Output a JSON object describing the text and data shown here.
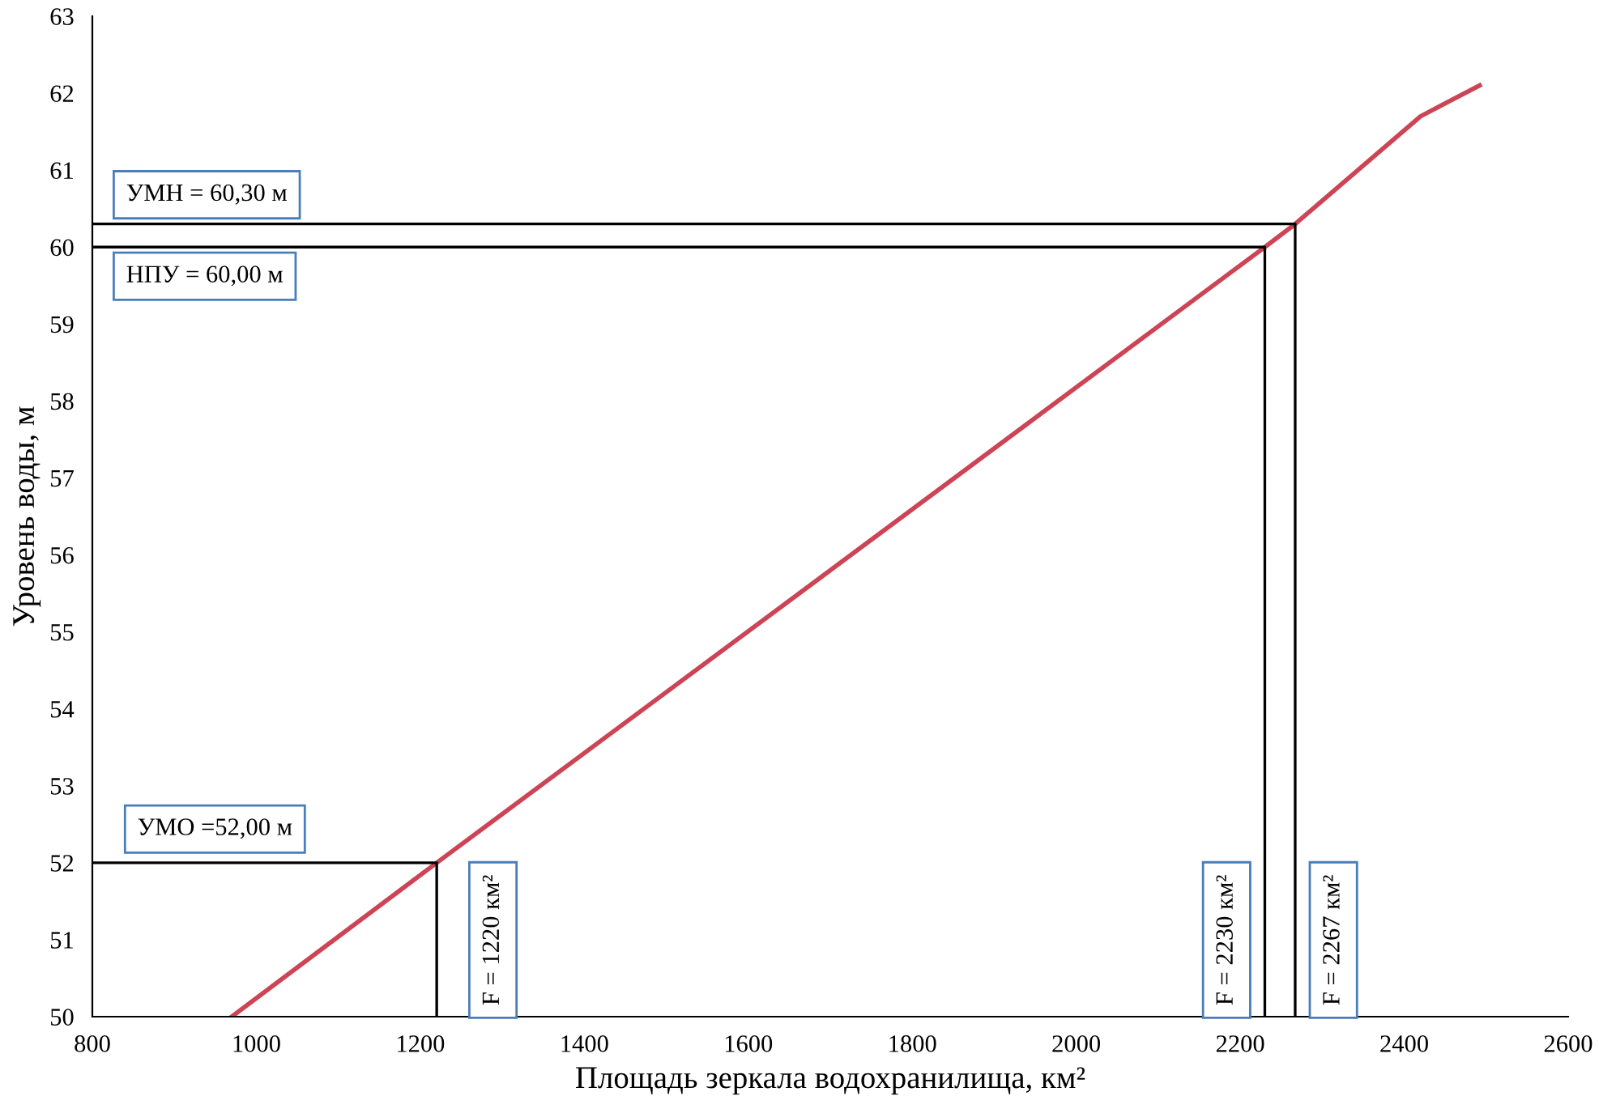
{
  "chart_data": {
    "type": "line",
    "xlabel": "Площадь зеркала водохранилища, км²",
    "ylabel": "Уровень воды, м",
    "xlim": [
      800,
      2600
    ],
    "xticks": [
      800,
      1000,
      1200,
      1400,
      1600,
      1800,
      2000,
      2200,
      2400,
      2600
    ],
    "ylim": [
      50,
      63
    ],
    "yticks": [
      50,
      51,
      52,
      53,
      54,
      55,
      56,
      57,
      58,
      59,
      60,
      61,
      62,
      63
    ],
    "grid": false,
    "legend": false,
    "marker": "none",
    "line_style": "solid",
    "series": [
      {
        "color": "#cc4455",
        "x": [
          970,
          1220,
          1700,
          2230,
          2267,
          2420,
          2492
        ],
        "values": [
          50,
          52,
          55.8,
          60,
          60.3,
          61.7,
          62.1
        ]
      },
      {
        "color": "#000000",
        "x": [
          800,
          1220,
          1220
        ],
        "values": [
          52,
          52,
          50
        ]
      },
      {
        "color": "#000000",
        "x": [
          800,
          2230,
          2230
        ],
        "values": [
          60,
          60,
          50
        ]
      },
      {
        "color": "#000000",
        "x": [
          800,
          2267,
          2267
        ],
        "values": [
          60.3,
          60.3,
          50
        ]
      }
    ],
    "annotations": [
      {
        "text": "УМН = 60,30 м",
        "x": 800,
        "y": 60.3
      },
      {
        "text": "НПУ = 60,00 м",
        "x": 800,
        "y": 60
      },
      {
        "text": "УМО =52,00 м",
        "x": 800,
        "y": 52
      },
      {
        "text": "F = 1220 км²",
        "x": 1220,
        "y": 50
      },
      {
        "text": "F = 2230 км²",
        "x": 2230,
        "y": 50
      },
      {
        "text": "F = 2267 км²",
        "x": 2267,
        "y": 50
      }
    ]
  }
}
